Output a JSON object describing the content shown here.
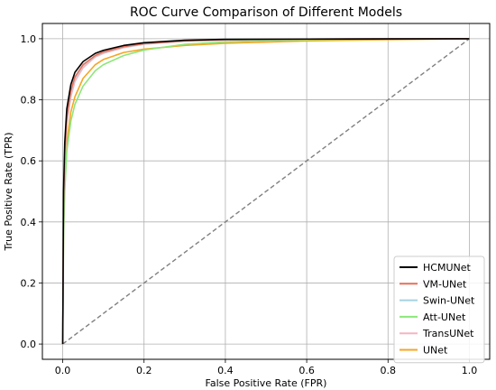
{
  "chart_data": {
    "type": "line",
    "title": "ROC Curve Comparison of Different Models",
    "xlabel": "False Positive Rate (FPR)",
    "ylabel": "True Positive Rate (TPR)",
    "xlim": [
      -0.05,
      1.05
    ],
    "ylim": [
      -0.05,
      1.05
    ],
    "x_ticks": [
      0.0,
      0.2,
      0.4,
      0.6,
      0.8,
      1.0
    ],
    "x_tick_labels": [
      "0.0",
      "0.2",
      "0.4",
      "0.6",
      "0.8",
      "1.0"
    ],
    "y_ticks": [
      0.0,
      0.2,
      0.4,
      0.6,
      0.8,
      1.0
    ],
    "y_tick_labels": [
      "0.0",
      "0.2",
      "0.4",
      "0.6",
      "0.8",
      "1.0"
    ],
    "grid": true,
    "legend_position": "lower-right",
    "reference_line": {
      "x": [
        0,
        1
      ],
      "y": [
        0,
        1
      ],
      "style": "dashed",
      "color": "#808080"
    },
    "series": [
      {
        "name": "HCMUNet",
        "color": "#000000",
        "x": [
          0,
          0.002,
          0.005,
          0.01,
          0.02,
          0.03,
          0.05,
          0.08,
          0.1,
          0.15,
          0.2,
          0.3,
          0.4,
          0.6,
          0.8,
          1.0
        ],
        "y": [
          0,
          0.5,
          0.66,
          0.77,
          0.85,
          0.89,
          0.925,
          0.952,
          0.962,
          0.978,
          0.987,
          0.995,
          0.998,
          0.999,
          0.9995,
          1.0
        ]
      },
      {
        "name": "VM-UNet",
        "color": "#e8705a",
        "x": [
          0,
          0.002,
          0.005,
          0.01,
          0.02,
          0.03,
          0.05,
          0.08,
          0.1,
          0.15,
          0.2,
          0.3,
          0.4,
          0.6,
          0.8,
          1.0
        ],
        "y": [
          0,
          0.46,
          0.63,
          0.745,
          0.83,
          0.875,
          0.915,
          0.945,
          0.957,
          0.974,
          0.984,
          0.993,
          0.997,
          0.999,
          0.9995,
          1.0
        ]
      },
      {
        "name": "Swin-UNet",
        "color": "#a6d2e0",
        "x": [
          0,
          0.002,
          0.005,
          0.01,
          0.02,
          0.03,
          0.05,
          0.08,
          0.1,
          0.15,
          0.2,
          0.3,
          0.4,
          0.6,
          0.8,
          1.0
        ],
        "y": [
          0,
          0.45,
          0.62,
          0.74,
          0.825,
          0.87,
          0.912,
          0.943,
          0.955,
          0.973,
          0.983,
          0.992,
          0.996,
          0.999,
          0.9995,
          1.0
        ]
      },
      {
        "name": "Att-UNet",
        "color": "#8ee67a",
        "x": [
          0,
          0.002,
          0.005,
          0.01,
          0.02,
          0.03,
          0.05,
          0.08,
          0.1,
          0.15,
          0.2,
          0.3,
          0.4,
          0.6,
          0.8,
          1.0
        ],
        "y": [
          0,
          0.34,
          0.5,
          0.63,
          0.73,
          0.785,
          0.845,
          0.895,
          0.915,
          0.945,
          0.963,
          0.982,
          0.99,
          0.997,
          0.999,
          1.0
        ]
      },
      {
        "name": "TransUNet",
        "color": "#f4b5bf",
        "x": [
          0,
          0.002,
          0.005,
          0.01,
          0.02,
          0.03,
          0.05,
          0.08,
          0.1,
          0.15,
          0.2,
          0.3,
          0.4,
          0.6,
          0.8,
          1.0
        ],
        "y": [
          0,
          0.42,
          0.59,
          0.72,
          0.81,
          0.86,
          0.905,
          0.94,
          0.952,
          0.971,
          0.982,
          0.992,
          0.996,
          0.999,
          0.9995,
          1.0
        ]
      },
      {
        "name": "UNet",
        "color": "#f5a623",
        "x": [
          0,
          0.002,
          0.005,
          0.01,
          0.02,
          0.03,
          0.05,
          0.08,
          0.1,
          0.15,
          0.2,
          0.3,
          0.4,
          0.6,
          0.8,
          1.0
        ],
        "y": [
          0,
          0.38,
          0.54,
          0.66,
          0.76,
          0.81,
          0.87,
          0.915,
          0.932,
          0.955,
          0.966,
          0.978,
          0.985,
          0.993,
          0.997,
          1.0
        ]
      }
    ]
  }
}
